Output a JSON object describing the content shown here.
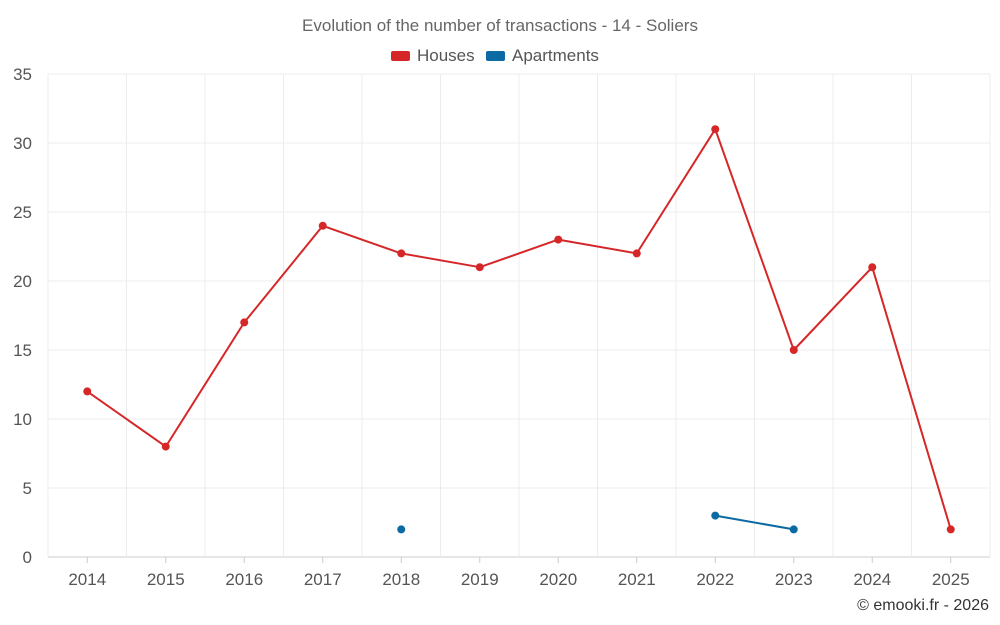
{
  "chart_data": {
    "type": "line",
    "title": "Evolution of the number of transactions - 14 - Soliers",
    "categories": [
      "2014",
      "2015",
      "2016",
      "2017",
      "2018",
      "2019",
      "2020",
      "2021",
      "2022",
      "2023",
      "2024",
      "2025"
    ],
    "series": [
      {
        "name": "Houses",
        "color": "#d62728",
        "values": [
          12,
          8,
          17,
          24,
          22,
          21,
          23,
          22,
          31,
          15,
          21,
          2
        ]
      },
      {
        "name": "Apartments",
        "color": "#0a6aa1",
        "values": [
          null,
          null,
          null,
          null,
          2,
          null,
          null,
          null,
          3,
          2,
          null,
          null
        ]
      }
    ],
    "y_ticks": [
      "0",
      "5",
      "10",
      "15",
      "20",
      "25",
      "30",
      "35"
    ],
    "ylim": [
      0,
      35
    ],
    "xlabel": "",
    "ylabel": "",
    "legend_position": "top-center",
    "grid": true
  },
  "credit": "© emooki.fr - 2026"
}
